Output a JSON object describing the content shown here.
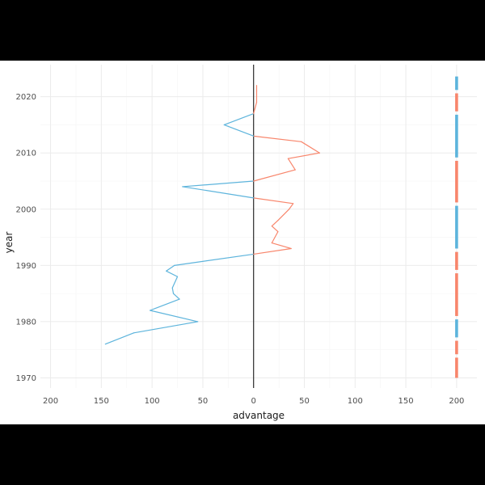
{
  "chart_data": {
    "type": "line",
    "xlabel": "advantage",
    "ylabel": "year",
    "x_tick_labels": [
      "200",
      "150",
      "100",
      "50",
      "0",
      "50",
      "100",
      "150",
      "200"
    ],
    "x_tick_values": [
      -200,
      -150,
      -100,
      -50,
      0,
      50,
      100,
      150,
      200
    ],
    "y_tick_labels": [
      "1970",
      "1980",
      "1990",
      "2000",
      "2010",
      "2020"
    ],
    "y_tick_values": [
      1970,
      1980,
      1990,
      2000,
      2010,
      2020
    ],
    "xlim": [
      -210,
      220
    ],
    "ylim": [
      1968.2,
      2025.7
    ],
    "grid": true,
    "legend": "none",
    "colors": {
      "positive": "#F8866C",
      "negative": "#5DB4DC",
      "zero_line": "#1a1a1a",
      "grid_major": "#ebebeb",
      "grid_minor": "#f5f5f5"
    },
    "series": [
      {
        "years": [
          1976,
          1978,
          1980,
          1982,
          1984,
          1985,
          1986,
          1988,
          1989,
          1990,
          1992,
          1993,
          1994,
          1996,
          1997,
          1998,
          2000,
          2001,
          2002,
          2004,
          2005,
          2007,
          2009,
          2010,
          2012,
          2013,
          2015,
          2017,
          2019,
          2021,
          2022
        ],
        "values": [
          -146,
          -118,
          -55,
          -102,
          -73,
          -79,
          -80,
          -75,
          -86,
          -78,
          0,
          37,
          18,
          24,
          18,
          24,
          35,
          39,
          0,
          -70,
          0,
          41,
          34,
          65,
          47,
          0,
          -29,
          0,
          3,
          3,
          3
        ]
      }
    ],
    "right_segments": [
      {
        "from": 1970.0,
        "to": 1973.6,
        "sign": "positive"
      },
      {
        "from": 1974.2,
        "to": 1976.6,
        "sign": "positive"
      },
      {
        "from": 1977.2,
        "to": 1980.4,
        "sign": "negative"
      },
      {
        "from": 1981.0,
        "to": 1988.6,
        "sign": "positive"
      },
      {
        "from": 1989.2,
        "to": 1992.4,
        "sign": "positive"
      },
      {
        "from": 1993.0,
        "to": 2000.6,
        "sign": "negative"
      },
      {
        "from": 2001.2,
        "to": 2008.6,
        "sign": "positive"
      },
      {
        "from": 2009.2,
        "to": 2016.8,
        "sign": "negative"
      },
      {
        "from": 2017.4,
        "to": 2020.6,
        "sign": "positive"
      },
      {
        "from": 2021.2,
        "to": 2023.6,
        "sign": "negative"
      }
    ],
    "right_segments_x": 200
  }
}
